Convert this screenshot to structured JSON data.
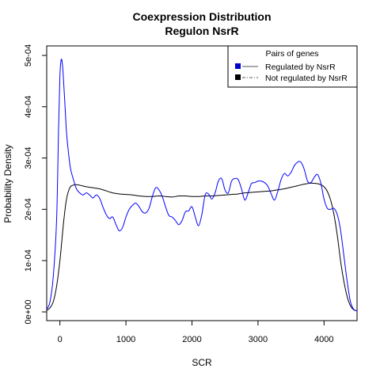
{
  "chart_data": {
    "type": "line",
    "title": "Coexpression Distribution",
    "subtitle": "Regulon NsrR",
    "xlabel": "SCR",
    "ylabel": "Probability Density",
    "xlim": [
      -200,
      4500
    ],
    "ylim": [
      0,
      0.0005
    ],
    "x_ticks": [
      0,
      1000,
      2000,
      3000,
      4000
    ],
    "x_tick_labels": [
      "0",
      "1000",
      "2000",
      "3000",
      "4000"
    ],
    "y_ticks": [
      0,
      0.0001,
      0.0002,
      0.0003,
      0.0004,
      0.0005
    ],
    "y_tick_labels": [
      "0e+00",
      "1e-04",
      "2e-04",
      "3e-04",
      "4e-04",
      "5e-04"
    ],
    "grid": false,
    "legend": {
      "title": "Pairs of genes",
      "placement": "top-right",
      "entries": [
        {
          "label": "Regulated by  NsrR",
          "color": "#0000cc",
          "line": "solid"
        },
        {
          "label": "Not regulated by  NsrR",
          "color": "#000000",
          "line": "dash-dot"
        }
      ]
    },
    "series": [
      {
        "name": "Regulated by  NsrR",
        "color": "#0000ff",
        "x": [
          -200,
          -150,
          -100,
          -50,
          -20,
          0,
          20,
          40,
          60,
          80,
          100,
          130,
          160,
          200,
          250,
          300,
          350,
          400,
          450,
          500,
          550,
          600,
          650,
          700,
          750,
          800,
          850,
          900,
          950,
          1000,
          1050,
          1100,
          1150,
          1200,
          1250,
          1300,
          1350,
          1400,
          1450,
          1500,
          1550,
          1600,
          1650,
          1700,
          1750,
          1800,
          1850,
          1900,
          1950,
          2000,
          2050,
          2100,
          2150,
          2200,
          2250,
          2300,
          2350,
          2400,
          2450,
          2500,
          2550,
          2600,
          2650,
          2700,
          2750,
          2800,
          2850,
          2900,
          2950,
          3000,
          3050,
          3100,
          3150,
          3200,
          3250,
          3300,
          3350,
          3400,
          3450,
          3500,
          3550,
          3600,
          3650,
          3700,
          3750,
          3800,
          3850,
          3900,
          3950,
          4000,
          4050,
          4100,
          4150,
          4200,
          4250,
          4300,
          4350,
          4400,
          4450,
          4500
        ],
        "y": [
          5e-06,
          2e-05,
          7e-05,
          0.00018,
          0.00036,
          0.00046,
          0.000492,
          0.00048,
          0.00044,
          0.000395,
          0.00035,
          0.00031,
          0.00028,
          0.00026,
          0.00024,
          0.000232,
          0.000228,
          0.000232,
          0.000228,
          0.000222,
          0.000228,
          0.000222,
          0.000205,
          0.00019,
          0.000182,
          0.000185,
          0.00017,
          0.000158,
          0.000165,
          0.000185,
          0.0002,
          0.000208,
          0.000212,
          0.000205,
          0.000195,
          0.000193,
          0.000202,
          0.000225,
          0.000242,
          0.000238,
          0.000225,
          0.000205,
          0.000188,
          0.000185,
          0.000178,
          0.00017,
          0.000178,
          0.000195,
          0.000197,
          0.000205,
          0.000185,
          0.000168,
          0.00019,
          0.000228,
          0.00023,
          0.00022,
          0.000232,
          0.000255,
          0.00026,
          0.000238,
          0.000232,
          0.000255,
          0.00026,
          0.000258,
          0.00024,
          0.000218,
          0.000232,
          0.00025,
          0.000252,
          0.000255,
          0.000255,
          0.000252,
          0.000245,
          0.00023,
          0.000218,
          0.000235,
          0.000258,
          0.00027,
          0.000265,
          0.000272,
          0.000285,
          0.000292,
          0.000292,
          0.000278,
          0.000255,
          0.000252,
          0.000262,
          0.000268,
          0.000252,
          0.00022,
          0.000202,
          0.0002,
          0.000202,
          0.00019,
          0.00016,
          0.00011,
          6e-05,
          2e-05,
          5e-06,
          2e-06
        ]
      },
      {
        "name": "Not regulated by  NsrR",
        "color": "#000000",
        "x": [
          -200,
          -150,
          -100,
          -50,
          0,
          30,
          60,
          100,
          150,
          200,
          250,
          300,
          400,
          500,
          600,
          700,
          800,
          900,
          1000,
          1100,
          1200,
          1300,
          1400,
          1500,
          1600,
          1700,
          1800,
          1900,
          2000,
          2100,
          2200,
          2300,
          2400,
          2500,
          2600,
          2700,
          2800,
          2900,
          3000,
          3100,
          3200,
          3300,
          3400,
          3500,
          3600,
          3700,
          3800,
          3900,
          3950,
          4000,
          4050,
          4100,
          4150,
          4200,
          4250,
          4300,
          4350,
          4400,
          4450,
          4500
        ],
        "y": [
          3e-06,
          8e-06,
          2e-05,
          5e-05,
          0.0001,
          0.00014,
          0.00018,
          0.00022,
          0.000242,
          0.000247,
          0.000248,
          0.000247,
          0.000244,
          0.000242,
          0.00024,
          0.000236,
          0.000232,
          0.00023,
          0.000229,
          0.000228,
          0.000226,
          0.000225,
          0.000225,
          0.000226,
          0.000225,
          0.000224,
          0.000226,
          0.000226,
          0.000225,
          0.000225,
          0.000226,
          0.000226,
          0.000227,
          0.000228,
          0.000229,
          0.00023,
          0.000232,
          0.000233,
          0.000234,
          0.000235,
          0.000236,
          0.000238,
          0.00024,
          0.000243,
          0.000246,
          0.000249,
          0.000251,
          0.00025,
          0.000248,
          0.000244,
          0.000235,
          0.000218,
          0.00019,
          0.00015,
          0.0001,
          6e-05,
          3e-05,
          1.2e-05,
          4e-06,
          2e-06
        ]
      }
    ]
  }
}
